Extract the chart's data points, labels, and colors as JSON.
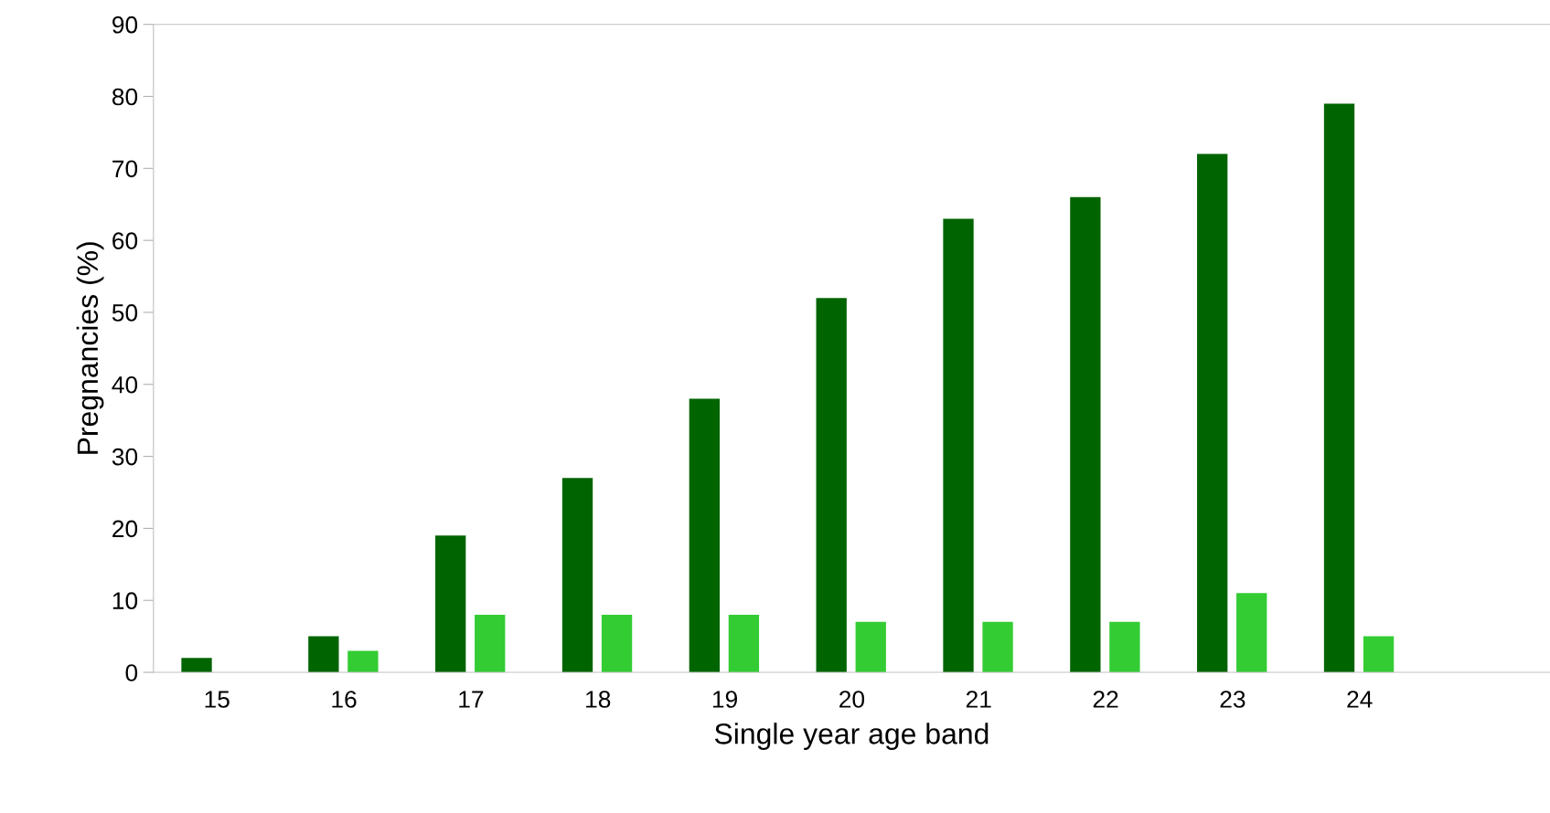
{
  "chart_data": {
    "type": "bar",
    "xlabel": "Single year age band",
    "ylabel": "Pregnancies (%)",
    "categories": [
      "15",
      "16",
      "17",
      "18",
      "19",
      "20",
      "21",
      "22",
      "23",
      "24",
      null
    ],
    "series": [
      {
        "color": "#006400",
        "values": [
          2,
          5,
          19,
          27,
          38,
          52,
          63,
          66,
          72,
          79,
          null
        ]
      },
      {
        "color": "#33cc33",
        "values": [
          null,
          3,
          8,
          8,
          8,
          7,
          7,
          7,
          11,
          5,
          null
        ]
      }
    ],
    "ylim": [
      0,
      90
    ],
    "yticks": [
      0,
      10,
      20,
      30,
      40,
      50,
      60,
      70,
      80,
      90
    ],
    "grid": false,
    "legend": false
  }
}
